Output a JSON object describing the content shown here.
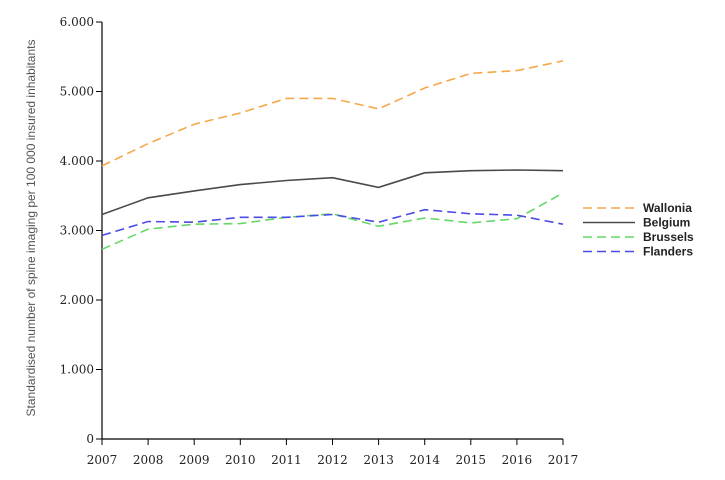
{
  "chart_data": {
    "type": "line",
    "title": "",
    "xlabel": "",
    "ylabel": "Standardised number of spine imaging per 100 000 insured inhabitants",
    "x": [
      "2007",
      "2008",
      "2009",
      "2010",
      "2011",
      "2012",
      "2013",
      "2014",
      "2015",
      "2016",
      "2017"
    ],
    "ylim": [
      0,
      6000
    ],
    "yticks": [
      0,
      1000,
      2000,
      3000,
      4000,
      5000,
      6000
    ],
    "ytick_labels": [
      "0",
      "1.000",
      "2.000",
      "3.000",
      "4.000",
      "5.000",
      "6.000"
    ],
    "legend_position": "right",
    "series": [
      {
        "name": "Wallonia",
        "color": "#F5A84A",
        "dash": "dashed",
        "values": [
          3930,
          4250,
          4530,
          4690,
          4900,
          4900,
          4750,
          5050,
          5260,
          5300,
          5440
        ]
      },
      {
        "name": "Belgium",
        "color": "#4a4a4a",
        "dash": "solid",
        "values": [
          3230,
          3470,
          3570,
          3660,
          3720,
          3760,
          3620,
          3830,
          3860,
          3870,
          3860
        ]
      },
      {
        "name": "Brussels",
        "color": "#66D866",
        "dash": "dashed",
        "values": [
          2730,
          3020,
          3090,
          3100,
          3190,
          3240,
          3060,
          3180,
          3110,
          3170,
          3540
        ]
      },
      {
        "name": "Flanders",
        "color": "#4B4BE8",
        "dash": "dashed",
        "values": [
          2930,
          3130,
          3120,
          3190,
          3190,
          3230,
          3120,
          3300,
          3240,
          3220,
          3090
        ]
      }
    ]
  }
}
